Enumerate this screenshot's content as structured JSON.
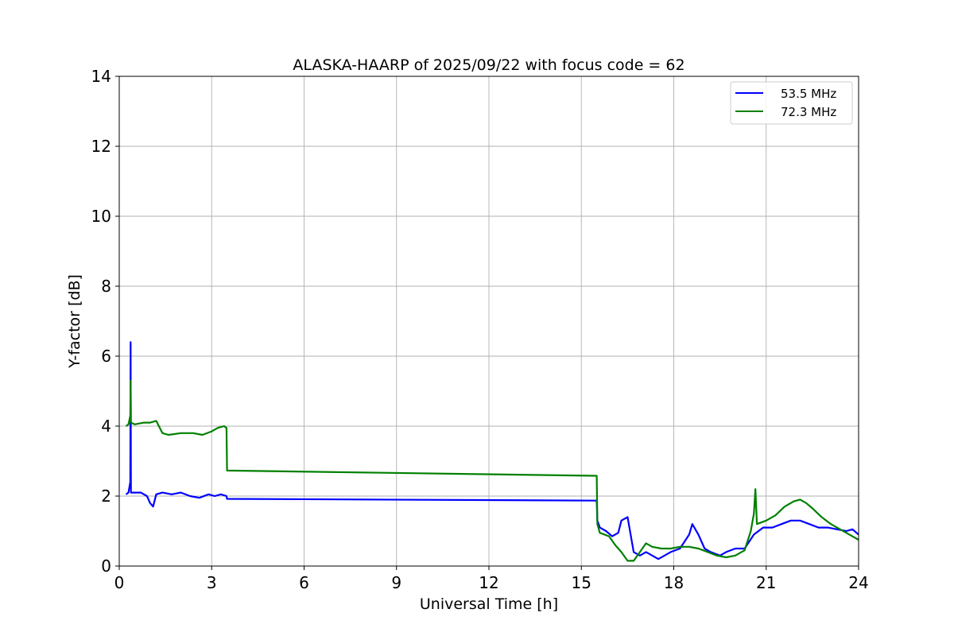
{
  "chart_data": {
    "type": "line",
    "title": "ALASKA-HAARP of 2025/09/22 with focus code = 62",
    "xlabel": "Universal Time [h]",
    "ylabel": "Y-factor [dB]",
    "xlim": [
      0,
      24
    ],
    "ylim": [
      0,
      14
    ],
    "xticks": [
      0,
      3,
      6,
      9,
      12,
      15,
      18,
      21,
      24
    ],
    "yticks": [
      0,
      2,
      4,
      6,
      8,
      10,
      12,
      14
    ],
    "grid": true,
    "legend_position": "top-right",
    "series": [
      {
        "name": "53.5 MHz",
        "color": "#0000ff",
        "x": [
          0.22,
          0.3,
          0.36,
          0.37,
          0.38,
          0.5,
          0.7,
          0.9,
          1.0,
          1.1,
          1.2,
          1.4,
          1.7,
          2.0,
          2.3,
          2.6,
          2.9,
          3.1,
          3.3,
          3.48,
          3.5,
          15.5,
          15.52,
          15.6,
          15.8,
          16.0,
          16.2,
          16.3,
          16.5,
          16.7,
          16.9,
          17.1,
          17.3,
          17.5,
          17.7,
          17.9,
          18.2,
          18.5,
          18.6,
          18.8,
          19.0,
          19.2,
          19.5,
          19.7,
          20.0,
          20.3,
          20.6,
          20.9,
          21.2,
          21.5,
          21.8,
          22.1,
          22.4,
          22.7,
          23.0,
          23.3,
          23.6,
          23.8,
          24.0
        ],
        "y": [
          2.05,
          2.1,
          2.4,
          6.4,
          2.1,
          2.1,
          2.1,
          2.0,
          1.8,
          1.7,
          2.05,
          2.1,
          2.05,
          2.1,
          2.0,
          1.95,
          2.05,
          2.0,
          2.05,
          2.0,
          1.92,
          1.87,
          1.3,
          1.1,
          1.0,
          0.85,
          0.95,
          1.3,
          1.4,
          0.4,
          0.3,
          0.4,
          0.3,
          0.2,
          0.3,
          0.4,
          0.5,
          0.9,
          1.2,
          0.9,
          0.5,
          0.4,
          0.3,
          0.4,
          0.5,
          0.5,
          0.9,
          1.1,
          1.1,
          1.2,
          1.3,
          1.3,
          1.2,
          1.1,
          1.1,
          1.05,
          1.0,
          1.05,
          0.9
        ]
      },
      {
        "name": "72.3 MHz",
        "color": "#008000",
        "x": [
          0.22,
          0.3,
          0.36,
          0.37,
          0.38,
          0.5,
          0.8,
          1.0,
          1.2,
          1.4,
          1.6,
          2.0,
          2.4,
          2.7,
          3.0,
          3.2,
          3.4,
          3.48,
          3.5,
          15.5,
          15.52,
          15.6,
          15.9,
          16.1,
          16.3,
          16.5,
          16.7,
          16.9,
          17.1,
          17.3,
          17.6,
          17.9,
          18.2,
          18.5,
          18.8,
          19.1,
          19.4,
          19.7,
          20.0,
          20.3,
          20.5,
          20.6,
          20.65,
          20.7,
          21.0,
          21.3,
          21.6,
          21.9,
          22.1,
          22.3,
          22.5,
          22.8,
          23.1,
          23.4,
          23.7,
          24.0
        ],
        "y": [
          4.0,
          4.05,
          4.3,
          5.3,
          4.1,
          4.05,
          4.1,
          4.1,
          4.15,
          3.8,
          3.75,
          3.8,
          3.8,
          3.75,
          3.85,
          3.95,
          4.0,
          3.95,
          2.73,
          2.58,
          1.2,
          0.95,
          0.85,
          0.6,
          0.4,
          0.15,
          0.15,
          0.4,
          0.65,
          0.55,
          0.5,
          0.5,
          0.55,
          0.55,
          0.5,
          0.4,
          0.3,
          0.25,
          0.3,
          0.45,
          1.0,
          1.5,
          2.2,
          1.2,
          1.3,
          1.45,
          1.7,
          1.85,
          1.9,
          1.8,
          1.65,
          1.4,
          1.2,
          1.05,
          0.9,
          0.75
        ]
      }
    ]
  }
}
